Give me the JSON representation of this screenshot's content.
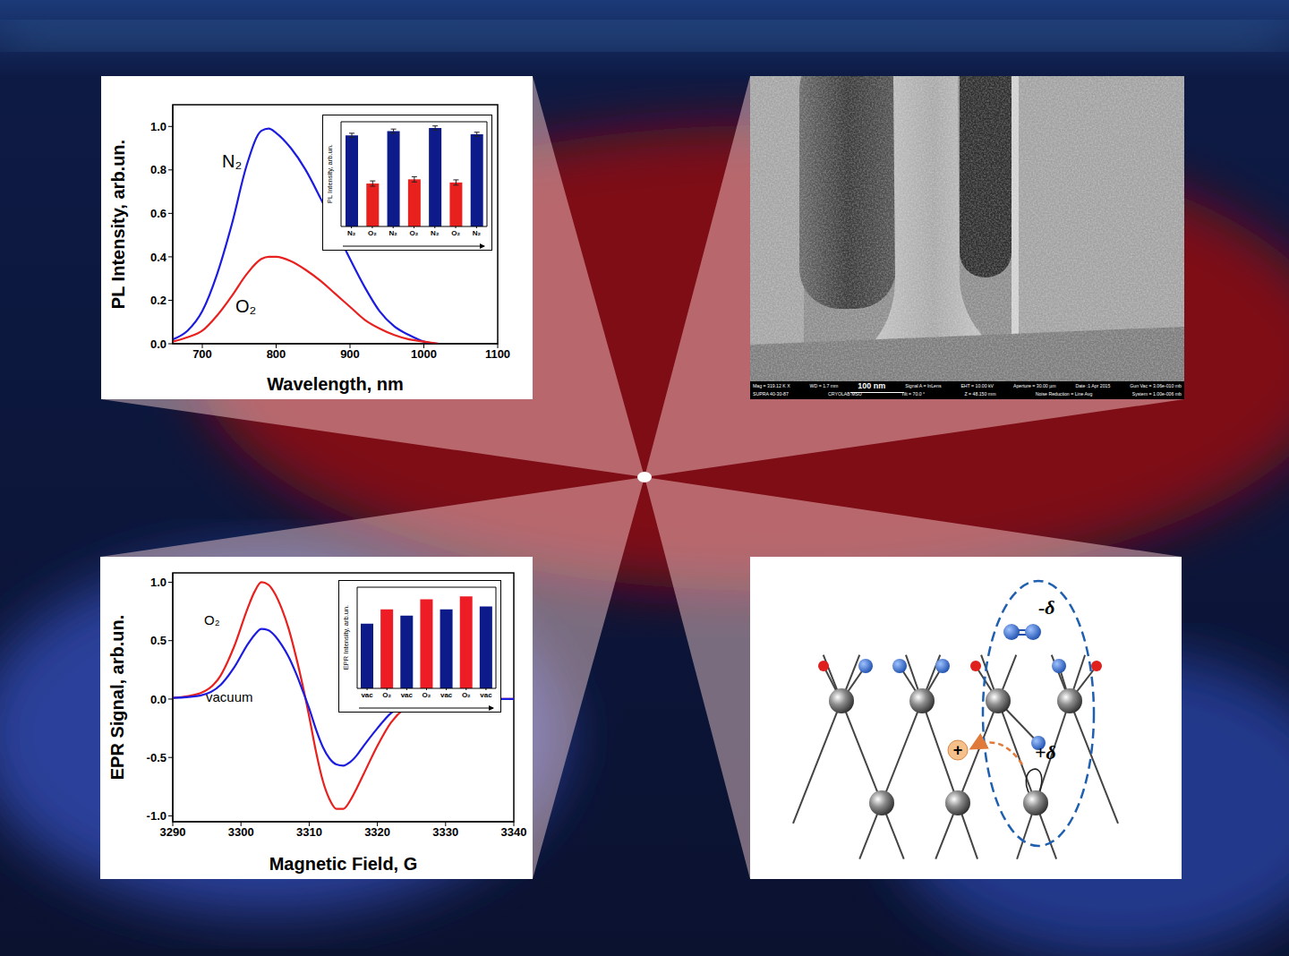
{
  "chart_data": [
    {
      "type": "line",
      "x_label": "Wavelength, nm",
      "y_label": "PL Intensity, arb.un.",
      "x": [
        660,
        680,
        700,
        720,
        740,
        760,
        780,
        790,
        800,
        820,
        840,
        860,
        880,
        900,
        920,
        940,
        960,
        980,
        1000,
        1020
      ],
      "series": [
        {
          "name": "N₂",
          "color": "#1c1ce0",
          "values": [
            0.02,
            0.06,
            0.15,
            0.32,
            0.55,
            0.82,
            0.98,
            0.99,
            0.97,
            0.9,
            0.8,
            0.67,
            0.53,
            0.39,
            0.26,
            0.15,
            0.08,
            0.04,
            0.01,
            0
          ]
        },
        {
          "name": "O₂",
          "color": "#e8201e",
          "values": [
            0.01,
            0.03,
            0.06,
            0.13,
            0.22,
            0.32,
            0.39,
            0.4,
            0.4,
            0.38,
            0.34,
            0.29,
            0.23,
            0.17,
            0.11,
            0.07,
            0.04,
            0.02,
            0.01,
            0
          ]
        }
      ],
      "xlim": [
        660,
        1100
      ],
      "xticks": [
        700,
        800,
        900,
        1000,
        1100
      ],
      "ylim": [
        0,
        1.1
      ],
      "yticks": [
        {
          "value": 0,
          "label": "0.0"
        },
        0.2,
        0.4,
        0.6,
        0.8,
        {
          "value": 1,
          "label": "1.0"
        }
      ]
    },
    {
      "type": "bar",
      "y_label": "PL Intensity, arb.un.",
      "categories": [
        "N₂",
        "O₂",
        "N₂",
        "O₂",
        "N₂",
        "O₂",
        "N₂"
      ],
      "values": [
        0.87,
        0.41,
        0.91,
        0.45,
        0.94,
        0.42,
        0.88
      ],
      "errors": [
        0.02,
        0.025,
        0.02,
        0.025,
        0.02,
        0.025,
        0.02
      ],
      "colors": [
        "#0c1a8a",
        "#e8201e",
        "#0c1a8a",
        "#e8201e",
        "#0c1a8a",
        "#e8201e",
        "#0c1a8a"
      ],
      "ylim": [
        0,
        1
      ],
      "tick_labels": "x"
    },
    {
      "type": "line",
      "x_label": "Magnetic Field, G",
      "y_label": "EPR Signal, arb.un.",
      "x": [
        3290,
        3294,
        3297,
        3299,
        3301,
        3302,
        3303,
        3304,
        3305,
        3306,
        3307,
        3308,
        3309,
        3310,
        3311,
        3312,
        3313,
        3314,
        3315,
        3316,
        3317,
        3318,
        3320,
        3322,
        3324,
        3326,
        3330,
        3335,
        3340
      ],
      "series": [
        {
          "name": "O₂",
          "color": "#e8201e",
          "values": [
            0.01,
            0.05,
            0.2,
            0.45,
            0.78,
            0.92,
            1.0,
            0.98,
            0.9,
            0.77,
            0.6,
            0.38,
            0.13,
            -0.15,
            -0.45,
            -0.7,
            -0.86,
            -0.94,
            -0.94,
            -0.87,
            -0.76,
            -0.64,
            -0.4,
            -0.2,
            -0.08,
            -0.02,
            0,
            0,
            0
          ]
        },
        {
          "name": "vacuum",
          "color": "#1c1ce0",
          "values": [
            0.01,
            0.03,
            0.12,
            0.27,
            0.47,
            0.55,
            0.6,
            0.59,
            0.54,
            0.46,
            0.36,
            0.23,
            0.08,
            -0.08,
            -0.26,
            -0.41,
            -0.51,
            -0.56,
            -0.57,
            -0.54,
            -0.48,
            -0.4,
            -0.25,
            -0.12,
            -0.05,
            -0.01,
            0,
            0,
            0
          ]
        }
      ],
      "xlim": [
        3290,
        3340
      ],
      "xticks": [
        3290,
        3300,
        3310,
        3320,
        3330,
        3340
      ],
      "ylim": [
        -1.05,
        1.08
      ],
      "yticks": [
        {
          "value": -1,
          "label": "-1.0"
        },
        -0.5,
        {
          "value": 0,
          "label": "0.0"
        },
        0.5,
        {
          "value": 1,
          "label": "1.0"
        }
      ]
    },
    {
      "type": "bar",
      "y_label": "EPR Intensity, arb.un.",
      "categories": [
        "vac",
        "O₂",
        "vac",
        "O₂",
        "vac",
        "O₂",
        "vac"
      ],
      "values": [
        0.64,
        0.78,
        0.72,
        0.88,
        0.78,
        0.91,
        0.81
      ],
      "colors": [
        "#0c1a8a",
        "#ee1c24",
        "#0c1a8a",
        "#ee1c24",
        "#0c1a8a",
        "#ee1c24",
        "#0c1a8a"
      ],
      "ylim": [
        0,
        1
      ],
      "tick_labels": "x"
    }
  ],
  "sem": {
    "scale_bar": "100 nm",
    "info": [
      [
        "Mag = 319.12 K X",
        "WD = 1.7 mm",
        "Signal A = InLens",
        "EHT = 10.00 kV",
        "Aperture = 30.00 µm",
        "Date :1 Apr 2015",
        "Gun Vac = 3.06e-010 mb"
      ],
      [
        "SUPRA 40-30-87",
        "CRYOLAB MSU",
        "Tilt = 70.0 °",
        "Z = 48.150 mm",
        "Noise Reduction = Line Avg",
        "System = 1.00e-006 mb"
      ]
    ]
  },
  "diagram": {
    "partial_negative": "-δ",
    "partial_positive": "+δ",
    "hole": "+"
  }
}
